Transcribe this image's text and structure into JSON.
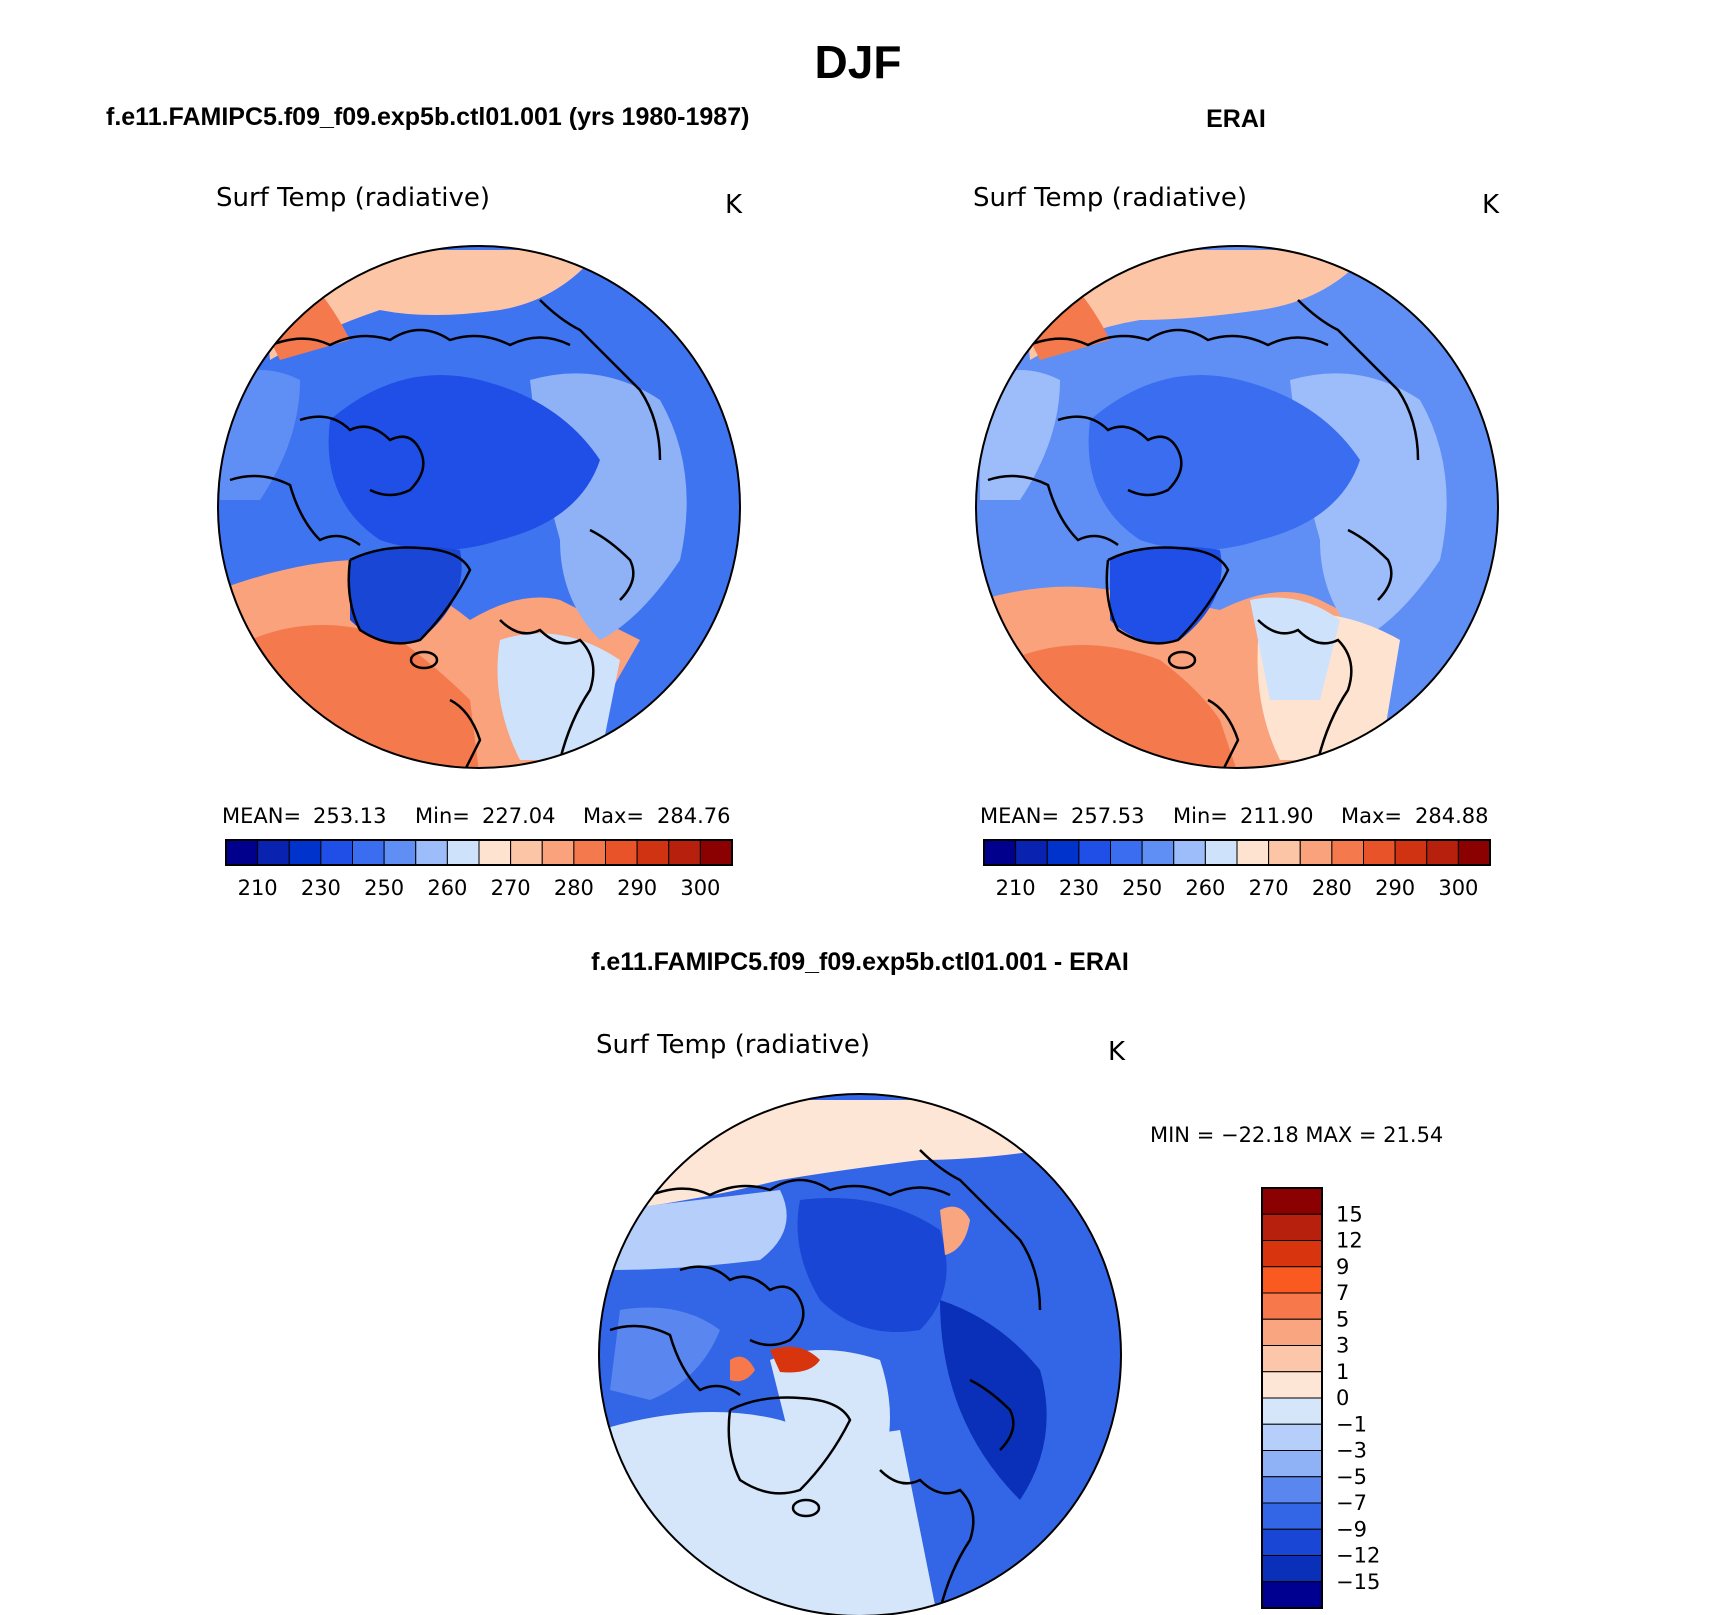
{
  "page_title": "DJF",
  "panels": [
    {
      "heading": "f.e11.FAMIPC5.f09_f09.exp5b.ctl01.001 (yrs 1980-1987)",
      "variable": "Surf Temp (radiative)",
      "units": "K",
      "stats": {
        "mean_label": "MEAN=",
        "mean": "253.13",
        "min_label": "Min=",
        "min": "227.04",
        "max_label": "Max=",
        "max": "284.76"
      }
    },
    {
      "heading": "ERAI",
      "variable": "Surf Temp (radiative)",
      "units": "K",
      "stats": {
        "mean_label": "MEAN=",
        "mean": "257.53",
        "min_label": "Min=",
        "min": "211.90",
        "max_label": "Max=",
        "max": "284.88"
      }
    }
  ],
  "abs_colorbar": {
    "colors": [
      "#00008c",
      "#0a22b0",
      "#0033cc",
      "#1f4fe6",
      "#3a6df0",
      "#5f8ff5",
      "#9dbcfa",
      "#cfe2fb",
      "#fde3d0",
      "#fcc5a6",
      "#f9a27c",
      "#f47a4e",
      "#e8532a",
      "#cf3312",
      "#b8200e",
      "#8b0000"
    ],
    "labels": [
      "210",
      "230",
      "250",
      "260",
      "270",
      "280",
      "290",
      "300"
    ]
  },
  "diff_panel": {
    "heading": "f.e11.FAMIPC5.f09_f09.exp5b.ctl01.001 - ERAI",
    "variable": "Surf Temp (radiative)",
    "units": "K",
    "minmax_text": "MIN = −22.18 MAX =  21.54"
  },
  "diff_colorbar": {
    "colors_top_to_bottom": [
      "#8b0000",
      "#b8200e",
      "#d8350f",
      "#fa5a20",
      "#f7784a",
      "#f9a680",
      "#fcc6aa",
      "#fde6d6",
      "#d5e6fb",
      "#b6cefa",
      "#8fb2f7",
      "#5a86f0",
      "#3366e6",
      "#1a46d6",
      "#0a2fb8",
      "#000090"
    ],
    "labels": [
      "15",
      "12",
      "9",
      "7",
      "5",
      "3",
      "1",
      "0",
      "−1",
      "−3",
      "−5",
      "−7",
      "−9",
      "−12",
      "−15"
    ]
  },
  "colors": {
    "coast": "#000000",
    "cold_deep": "#1240d8",
    "cold_mid": "#3f74f0",
    "cold_light": "#8fb2f7",
    "neutral_light": "#d5e6fb",
    "warm_light": "#fcc5a6",
    "warm_mid": "#f9a27c",
    "warm_deep": "#f47a4e"
  }
}
